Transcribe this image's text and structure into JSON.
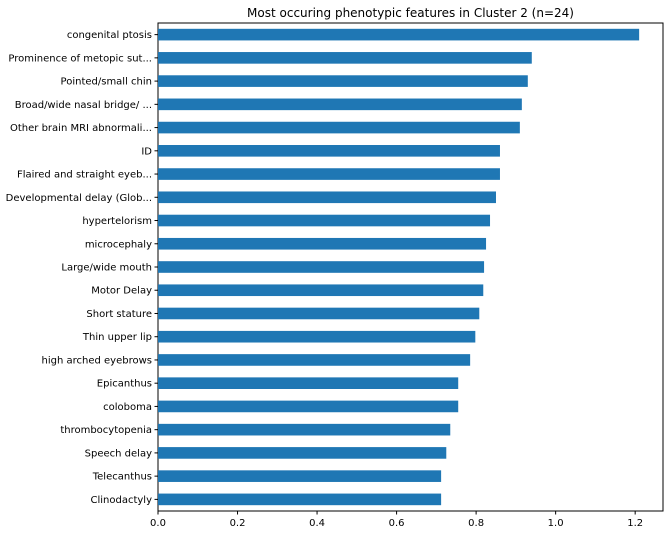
{
  "chart_data": {
    "type": "bar",
    "orientation": "horizontal",
    "title": "Most occuring phenotypic features in Cluster 2 (n=24)",
    "xlabel": "",
    "ylabel": "",
    "xlim": [
      0,
      1.27
    ],
    "xticks": [
      "0.0",
      "0.2",
      "0.4",
      "0.6",
      "0.8",
      "1.0",
      "1.2"
    ],
    "xtick_values": [
      0,
      0.2,
      0.4,
      0.6,
      0.8,
      1.0,
      1.2
    ],
    "grid": false,
    "color": "#1f77b4",
    "categories": [
      "congenital ptosis",
      "Prominence of metopic sut...",
      "Pointed/small chin",
      "Broad/wide nasal bridge/ ...",
      "Other brain MRI abnormali...",
      "ID",
      "Flaired and straight eyeb...",
      "Developmental delay (Glob...",
      "hypertelorism",
      "microcephaly",
      "Large/wide mouth",
      "Motor Delay",
      "Short stature",
      "Thin upper lip",
      "high arched eyebrows",
      "Epicanthus",
      "coloboma",
      "thrombocytopenia",
      "Speech delay",
      "Telecanthus",
      "Clinodactyly"
    ],
    "values": [
      1.21,
      0.94,
      0.93,
      0.915,
      0.91,
      0.86,
      0.86,
      0.85,
      0.835,
      0.825,
      0.82,
      0.818,
      0.808,
      0.798,
      0.785,
      0.755,
      0.755,
      0.735,
      0.725,
      0.712,
      0.712
    ]
  }
}
